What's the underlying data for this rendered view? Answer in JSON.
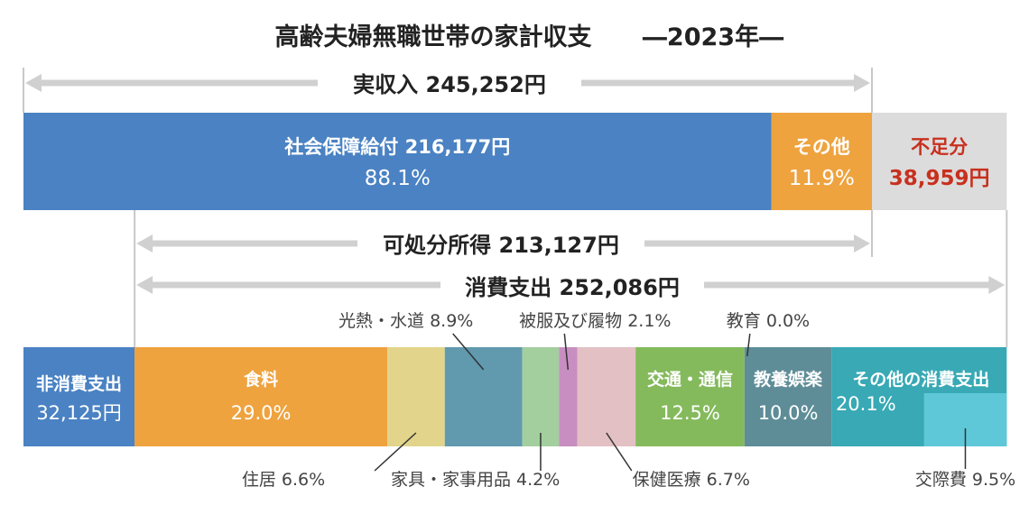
{
  "title": "高齢夫婦無職世帯の家計収支",
  "year_label": "―2023年―",
  "colors": {
    "income_social_security": "#4a82c3",
    "income_other": "#eea33f",
    "shortfall_bg": "#dcdcdc",
    "shortfall_text": "#c8301e",
    "non_consumption": "#4a82c3",
    "food": "#eea33f",
    "housing": "#e2d58b",
    "utilities": "#6199ae",
    "furniture": "#a3cf9e",
    "clothing": "#c98ec1",
    "medical": "#e3c0c4",
    "transport": "#84ba5c",
    "education": "#5e8d98",
    "recreation": "#5e8d98",
    "other_consumption": "#38a9b5",
    "social_expenses": "#5ec8d8",
    "arrow": "#d0d0d0",
    "guide_line": "#c8c8c8"
  },
  "chart_data": {
    "type": "bar",
    "unit": "円",
    "income": {
      "label": "実収入 245,252円",
      "total": 245252,
      "segments": [
        {
          "key": "income_social_security",
          "value": 216177,
          "label": "社会保障給付 216,177円",
          "pct_label": "88.1%"
        },
        {
          "key": "income_other",
          "value": 29075,
          "label": "その他",
          "pct_label": "11.9%"
        }
      ],
      "shortfall": {
        "value": 38959,
        "label": "不足分",
        "value_label": "38,959円"
      }
    },
    "disposable_income": {
      "label": "可処分所得 213,127円",
      "value": 213127
    },
    "consumption": {
      "label": "消費支出 252,086円",
      "value": 252086
    },
    "non_consumption": {
      "label": "非消費支出",
      "value": 32125,
      "value_label": "32,125円"
    },
    "consumption_breakdown": [
      {
        "key": "food",
        "name": "食料",
        "pct": 29.0,
        "inner_label": "食料",
        "inner_pct": "29.0%"
      },
      {
        "key": "housing",
        "name": "住居",
        "pct": 6.6,
        "callout": "住居 6.6%"
      },
      {
        "key": "utilities",
        "name": "光熱・水道",
        "pct": 8.9,
        "callout": "光熱・水道 8.9%"
      },
      {
        "key": "furniture",
        "name": "家具・家事用品",
        "pct": 4.2,
        "callout": "家具・家事用品 4.2%"
      },
      {
        "key": "clothing",
        "name": "被服及び履物",
        "pct": 2.1,
        "callout": "被服及び履物 2.1%"
      },
      {
        "key": "medical",
        "name": "保健医療",
        "pct": 6.7,
        "callout": "保健医療 6.7%"
      },
      {
        "key": "transport",
        "name": "交通・通信",
        "pct": 12.5,
        "inner_label": "交通・通信",
        "inner_pct": "12.5%"
      },
      {
        "key": "education",
        "name": "教育",
        "pct": 0.0,
        "callout": "教育 0.0%"
      },
      {
        "key": "recreation",
        "name": "教養娯楽",
        "pct": 10.0,
        "inner_label": "教養娯楽",
        "inner_pct": "10.0%"
      },
      {
        "key": "other_consumption",
        "name": "その他の消費支出",
        "pct": 20.1,
        "inner_label": "その他の消費支出",
        "inner_pct": "20.1%"
      }
    ],
    "sub_breakdown": {
      "parent": "other_consumption",
      "key": "social_expenses",
      "name": "交際費",
      "pct": 9.5,
      "callout": "交際費 9.5%"
    }
  }
}
